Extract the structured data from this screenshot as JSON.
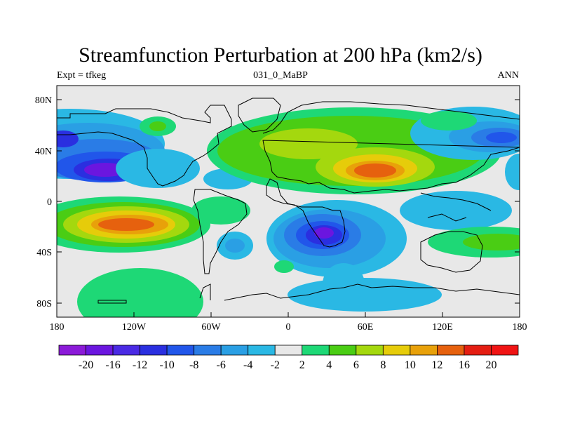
{
  "title": "Streamfunction Perturbation at 200 hPa (km2/s)",
  "left_string": "Expt = tfkeg",
  "center_string": "031_0_MaBP",
  "right_string": "ANN",
  "lat_labels": [
    "80N",
    "40N",
    "0",
    "40S",
    "80S"
  ],
  "lon_labels": [
    "180",
    "120W",
    "60W",
    "0",
    "60E",
    "120E",
    "180"
  ],
  "colorbar": {
    "colors": [
      "#8b1ad8",
      "#6b16df",
      "#4a2ae4",
      "#2a2fe0",
      "#2156ea",
      "#2a7ce6",
      "#2a9fe4",
      "#2ab8e4",
      "#e8e8e8",
      "#1ed876",
      "#4acd14",
      "#a4d80e",
      "#e6cc0a",
      "#e8a10a",
      "#e6610e",
      "#e41e12",
      "#f01414"
    ],
    "labels": [
      "-20",
      "-16",
      "-12",
      "-10",
      "-8",
      "-6",
      "-4",
      "-2",
      "2",
      "4",
      "6",
      "8",
      "10",
      "12",
      "16",
      "20"
    ]
  }
}
